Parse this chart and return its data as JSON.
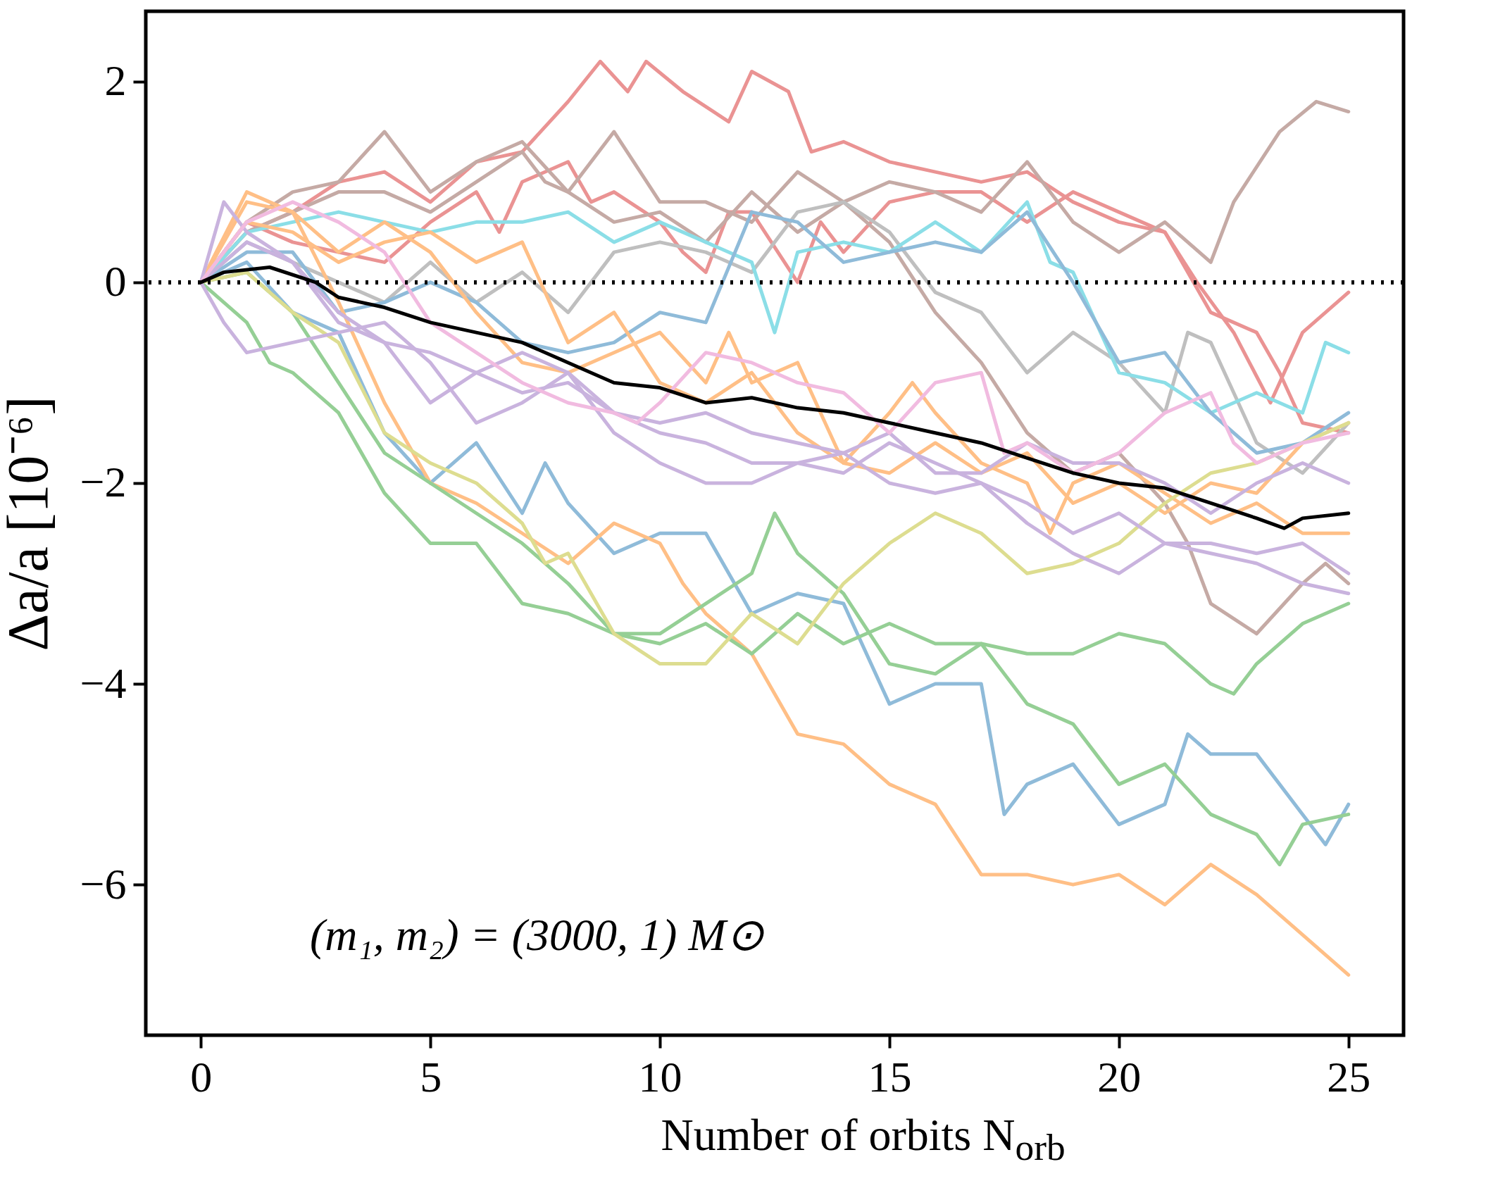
{
  "chart_data": {
    "type": "line",
    "xlabel": "Number of orbits N$_{orb}$",
    "ylabel": "Δa/a [10⁻⁶]",
    "annotations": [
      "(m₁, m₂) = (3000, 1) M⊙"
    ],
    "xlim": [
      -1.2,
      26.2
    ],
    "ylim": [
      -7.5,
      2.7
    ],
    "xticks": [
      0,
      5,
      10,
      15,
      20,
      25
    ],
    "yticks": [
      -6,
      -4,
      -2,
      0,
      2
    ],
    "line_style": "solid",
    "ref_lines": [
      {
        "axis": "y",
        "value": 0,
        "color": "#000000",
        "line_style": "dotted"
      }
    ],
    "series": [
      {
        "color": "#ea9393",
        "x": [
          0,
          1,
          2,
          3,
          4,
          5,
          6,
          7,
          8,
          8.7,
          9.3,
          9.7,
          10.5,
          11.5,
          12,
          12.8,
          13.3,
          14,
          15,
          16,
          17,
          18,
          19,
          20,
          21,
          21.7,
          22.5,
          23.3,
          24,
          25
        ],
        "values": [
          0,
          0.5,
          0.7,
          1.0,
          1.1,
          0.8,
          1.2,
          1.3,
          1.8,
          2.2,
          1.9,
          2.2,
          1.9,
          1.6,
          2.1,
          1.9,
          1.3,
          1.4,
          1.2,
          1.1,
          1.0,
          1.1,
          0.8,
          0.6,
          0.5,
          0,
          -0.5,
          -1.2,
          -0.5,
          -0.1
        ]
      },
      {
        "color": "#ea9393",
        "x": [
          0,
          1,
          2,
          3,
          4,
          5,
          6,
          6.5,
          7,
          8,
          8.5,
          9,
          10,
          10.5,
          11,
          11.5,
          12,
          13,
          13.5,
          14,
          15,
          16,
          17,
          18,
          19,
          20,
          21,
          22,
          23,
          23.5,
          24,
          25
        ],
        "values": [
          0,
          0.6,
          0.4,
          0.3,
          0.2,
          0.6,
          0.9,
          0.5,
          1.0,
          1.2,
          0.8,
          0.9,
          0.6,
          0.3,
          0.1,
          0.7,
          0.7,
          0,
          0.6,
          0.3,
          0.8,
          0.9,
          0.9,
          0.6,
          0.9,
          0.7,
          0.5,
          -0.3,
          -0.5,
          -0.9,
          -1.4,
          -1.5
        ]
      },
      {
        "color": "#c5aaa5",
        "x": [
          0,
          1,
          2,
          3,
          4,
          5,
          6,
          7,
          8,
          9,
          10,
          11,
          12,
          13,
          14,
          15,
          16,
          17,
          18,
          19,
          20,
          21,
          22,
          22.5,
          23.5,
          24.3,
          25
        ],
        "values": [
          0,
          0.6,
          0.9,
          1.0,
          1.5,
          0.9,
          1.2,
          1.4,
          0.9,
          1.5,
          0.8,
          0.8,
          0.6,
          1.1,
          0.8,
          1.0,
          0.9,
          0.7,
          1.2,
          0.6,
          0.3,
          0.6,
          0.2,
          0.8,
          1.5,
          1.8,
          1.7
        ]
      },
      {
        "color": "#c5aaa5",
        "x": [
          0,
          1,
          2,
          3,
          4,
          5,
          6,
          7,
          7.5,
          8,
          9,
          10,
          11,
          12,
          13,
          14,
          15,
          16,
          17,
          18,
          19,
          20,
          21,
          21.5,
          22,
          23,
          24,
          24.5,
          25
        ],
        "values": [
          0,
          0.5,
          0.7,
          0.9,
          0.9,
          0.7,
          1.0,
          1.3,
          1.0,
          0.9,
          0.6,
          0.7,
          0.4,
          0.9,
          0.5,
          0.8,
          0.4,
          -0.3,
          -0.8,
          -1.5,
          -1.9,
          -1.7,
          -2.2,
          -2.6,
          -3.2,
          -3.5,
          -3.0,
          -2.8,
          -3.0
        ]
      },
      {
        "color": "#bfbfbf",
        "x": [
          0,
          1,
          2,
          3,
          4,
          5,
          6,
          7,
          8,
          9,
          10,
          11,
          12,
          13,
          14,
          15,
          16,
          17,
          18,
          19,
          20,
          21,
          21.5,
          22,
          23,
          24,
          25
        ],
        "values": [
          0,
          0.4,
          0.2,
          0,
          -0.2,
          0.2,
          -0.2,
          0.1,
          -0.3,
          0.3,
          0.4,
          0.3,
          0.1,
          0.7,
          0.8,
          0.5,
          -0.1,
          -0.3,
          -0.9,
          -0.5,
          -0.8,
          -1.3,
          -0.5,
          -0.6,
          -1.6,
          -1.9,
          -1.4
        ]
      },
      {
        "color": "#8bdee7",
        "x": [
          0,
          1,
          2,
          3,
          4,
          5,
          6,
          7,
          8,
          9,
          10,
          11,
          12,
          12.5,
          13,
          14,
          15,
          16,
          17,
          18,
          18.5,
          19,
          20,
          21,
          22,
          23,
          24,
          24.5,
          25
        ],
        "values": [
          0,
          0.5,
          0.6,
          0.7,
          0.6,
          0.5,
          0.6,
          0.6,
          0.7,
          0.4,
          0.6,
          0.4,
          0.2,
          -0.5,
          0.3,
          0.4,
          0.3,
          0.6,
          0.3,
          0.8,
          0.2,
          0.1,
          -0.9,
          -1.0,
          -1.3,
          -1.1,
          -1.3,
          -0.6,
          -0.7
        ]
      },
      {
        "color": "#8fbbd9",
        "x": [
          0,
          1,
          2,
          3,
          4,
          5,
          6,
          7,
          8,
          9,
          10,
          11,
          12,
          13,
          14,
          15,
          16,
          17,
          18,
          19,
          20,
          21,
          22,
          23,
          24,
          25
        ],
        "values": [
          0,
          0.3,
          0.3,
          -0.3,
          -0.2,
          0,
          -0.2,
          -0.6,
          -0.7,
          -0.6,
          -0.3,
          -0.4,
          0.7,
          0.6,
          0.2,
          0.3,
          0.4,
          0.3,
          0.7,
          0,
          -0.8,
          -0.7,
          -1.3,
          -1.7,
          -1.6,
          -1.3
        ]
      },
      {
        "color": "#8fbbd9",
        "x": [
          0,
          1,
          2,
          3,
          4,
          5,
          6,
          7,
          7.5,
          8,
          9,
          10,
          11,
          12,
          13,
          14,
          15,
          16,
          17,
          17.5,
          18,
          19,
          20,
          21,
          21.5,
          22,
          23,
          24,
          24.5,
          25
        ],
        "values": [
          0,
          0.2,
          -0.3,
          -0.5,
          -1.5,
          -2.0,
          -1.6,
          -2.3,
          -1.8,
          -2.2,
          -2.7,
          -2.5,
          -2.5,
          -3.3,
          -3.1,
          -3.2,
          -4.2,
          -4.0,
          -4.0,
          -5.3,
          -5.0,
          -4.8,
          -5.4,
          -5.2,
          -4.5,
          -4.7,
          -4.7,
          -5.3,
          -5.6,
          -5.2
        ]
      },
      {
        "color": "#ffbf86",
        "x": [
          0,
          1,
          2,
          3,
          4,
          5,
          6,
          7,
          8,
          9,
          10,
          10.5,
          11,
          12,
          13,
          14,
          15,
          16,
          17,
          18,
          19,
          20,
          21,
          22,
          23,
          24,
          25
        ],
        "values": [
          0,
          0.8,
          0.7,
          -0.2,
          -1.2,
          -2.0,
          -2.2,
          -2.5,
          -2.8,
          -2.4,
          -2.6,
          -3.0,
          -3.3,
          -3.7,
          -4.5,
          -4.6,
          -5.0,
          -5.2,
          -5.9,
          -5.9,
          -6.0,
          -5.9,
          -6.2,
          -5.8,
          -6.1,
          -6.5,
          -6.9
        ]
      },
      {
        "color": "#ffbf86",
        "x": [
          0,
          1,
          2,
          3,
          4,
          5,
          6,
          7,
          8,
          9,
          10,
          11,
          11.5,
          12,
          13,
          14,
          15,
          15.5,
          16,
          17,
          18,
          18.5,
          19,
          20,
          21,
          22,
          23,
          24,
          25
        ],
        "values": [
          0,
          0.9,
          0.7,
          0.3,
          0.6,
          0.3,
          -0.3,
          -0.8,
          -0.9,
          -0.7,
          -0.5,
          -1.0,
          -0.5,
          -1.0,
          -0.8,
          -1.8,
          -1.3,
          -1.0,
          -1.3,
          -1.8,
          -2.0,
          -2.5,
          -2.0,
          -1.8,
          -2.1,
          -2.4,
          -2.2,
          -2.5,
          -2.5
        ]
      },
      {
        "color": "#ffbf86",
        "x": [
          0,
          1,
          2,
          3,
          4,
          5,
          6,
          7,
          8,
          9,
          10,
          11,
          12,
          13,
          14,
          15,
          16,
          17,
          18,
          19,
          20,
          21,
          22,
          23,
          24,
          25
        ],
        "values": [
          0,
          0.6,
          0.5,
          0.2,
          0.4,
          0.5,
          0.2,
          0.4,
          -0.6,
          -0.3,
          -1.0,
          -1.2,
          -0.9,
          -1.5,
          -1.8,
          -1.9,
          -1.6,
          -1.9,
          -1.7,
          -2.2,
          -2.0,
          -2.3,
          -2.0,
          -2.1,
          -1.6,
          -1.4
        ]
      },
      {
        "color": "#95cf95",
        "x": [
          0,
          1,
          1.5,
          2,
          3,
          4,
          5,
          6,
          7,
          8,
          9,
          10,
          11,
          12,
          13,
          14,
          15,
          16,
          17,
          18,
          19,
          20,
          21,
          22,
          22.5,
          23,
          24,
          25
        ],
        "values": [
          0,
          -0.4,
          -0.8,
          -0.9,
          -1.3,
          -2.1,
          -2.6,
          -2.6,
          -3.2,
          -3.3,
          -3.5,
          -3.6,
          -3.4,
          -3.7,
          -3.3,
          -3.6,
          -3.4,
          -3.6,
          -3.6,
          -3.7,
          -3.7,
          -3.5,
          -3.6,
          -4.0,
          -4.1,
          -3.8,
          -3.4,
          -3.2
        ]
      },
      {
        "color": "#95cf95",
        "x": [
          0,
          1,
          2,
          3,
          4,
          5,
          6,
          7,
          8,
          9,
          10,
          11,
          12,
          12.5,
          13,
          14,
          15,
          16,
          17,
          18,
          19,
          20,
          21,
          22,
          23,
          23.5,
          24,
          25
        ],
        "values": [
          0,
          0.1,
          -0.3,
          -1.0,
          -1.7,
          -2.0,
          -2.3,
          -2.6,
          -3.0,
          -3.5,
          -3.5,
          -3.2,
          -2.9,
          -2.3,
          -2.7,
          -3.1,
          -3.8,
          -3.9,
          -3.6,
          -4.2,
          -4.4,
          -5.0,
          -4.8,
          -5.3,
          -5.5,
          -5.8,
          -5.4,
          -5.3
        ]
      },
      {
        "color": "#dddd90",
        "x": [
          0,
          1,
          2,
          3,
          4,
          5,
          6,
          7,
          7.5,
          8,
          9,
          10,
          11,
          12,
          13,
          14,
          15,
          16,
          17,
          18,
          19,
          20,
          21,
          22,
          23,
          24,
          25
        ],
        "values": [
          0,
          0.1,
          -0.3,
          -0.6,
          -1.5,
          -1.8,
          -2.0,
          -2.4,
          -2.8,
          -2.7,
          -3.5,
          -3.8,
          -3.8,
          -3.3,
          -3.6,
          -3.0,
          -2.6,
          -2.3,
          -2.5,
          -2.9,
          -2.8,
          -2.6,
          -2.2,
          -1.9,
          -1.8,
          -1.6,
          -1.4
        ]
      },
      {
        "color": "#c9b3de",
        "x": [
          0,
          0.5,
          1,
          2,
          3,
          4,
          5,
          6,
          7,
          8,
          9,
          10,
          11,
          12,
          13,
          14,
          15,
          16,
          17,
          18,
          19,
          20,
          21,
          22,
          23,
          24,
          25
        ],
        "values": [
          0,
          0.8,
          0.5,
          0.2,
          -0.4,
          -0.6,
          -1.2,
          -0.9,
          -0.7,
          -0.9,
          -1.3,
          -1.5,
          -1.6,
          -1.8,
          -1.8,
          -1.7,
          -1.5,
          -1.9,
          -1.9,
          -1.6,
          -1.8,
          -1.8,
          -2.0,
          -2.3,
          -2.0,
          -1.8,
          -2.0
        ]
      },
      {
        "color": "#c9b3de",
        "x": [
          0,
          0.5,
          1,
          2,
          3,
          4,
          5,
          6,
          7,
          8,
          9,
          10,
          11,
          12,
          13,
          14,
          15,
          16,
          17,
          18,
          19,
          20,
          21,
          22,
          23,
          24,
          25
        ],
        "values": [
          0,
          -0.4,
          -0.7,
          -0.6,
          -0.5,
          -0.4,
          -0.8,
          -1.4,
          -1.2,
          -0.9,
          -1.5,
          -1.8,
          -2.0,
          -2.0,
          -1.8,
          -1.9,
          -1.6,
          -1.8,
          -2.0,
          -2.4,
          -2.7,
          -2.9,
          -2.6,
          -2.6,
          -2.7,
          -2.6,
          -2.9
        ]
      },
      {
        "color": "#c9b3de",
        "x": [
          0,
          1,
          2,
          3,
          4,
          5,
          6,
          7,
          8,
          9,
          10,
          11,
          12,
          13,
          14,
          15,
          16,
          17,
          18,
          19,
          20,
          21,
          22,
          23,
          24,
          25
        ],
        "values": [
          0,
          0.4,
          0.2,
          -0.3,
          -0.6,
          -0.7,
          -0.9,
          -1.1,
          -1.0,
          -1.3,
          -1.4,
          -1.3,
          -1.5,
          -1.6,
          -1.7,
          -2.0,
          -2.1,
          -2.0,
          -2.2,
          -2.5,
          -2.3,
          -2.6,
          -2.7,
          -2.8,
          -3.0,
          -3.1
        ]
      },
      {
        "color": "#f1bbe0",
        "x": [
          0,
          1,
          2,
          3,
          4,
          5,
          6,
          7,
          8,
          9,
          9.5,
          10,
          11,
          12,
          13,
          14,
          15,
          16,
          17,
          17.5,
          18,
          19,
          20,
          21,
          22,
          22.5,
          23,
          24,
          25
        ],
        "values": [
          0,
          0.6,
          0.8,
          0.6,
          0.3,
          -0.4,
          -0.7,
          -1.0,
          -1.2,
          -1.3,
          -1.4,
          -1.2,
          -0.7,
          -0.8,
          -1.0,
          -1.1,
          -1.5,
          -1.0,
          -0.9,
          -1.7,
          -1.6,
          -1.9,
          -1.7,
          -1.3,
          -1.1,
          -1.6,
          -1.8,
          -1.6,
          -1.5
        ]
      },
      {
        "color": "#000000",
        "x": [
          0,
          0.5,
          1.5,
          2.5,
          3,
          4,
          5,
          6,
          7,
          8,
          9,
          10,
          11,
          12,
          13,
          14,
          15,
          16,
          17,
          18,
          19,
          20,
          21,
          22,
          23,
          23.6,
          24,
          25
        ],
        "values": [
          0,
          0.1,
          0.15,
          0,
          -0.15,
          -0.25,
          -0.4,
          -0.5,
          -0.6,
          -0.8,
          -1.0,
          -1.05,
          -1.2,
          -1.15,
          -1.25,
          -1.3,
          -1.4,
          -1.5,
          -1.6,
          -1.75,
          -1.9,
          -2.0,
          -2.05,
          -2.2,
          -2.35,
          -2.45,
          -2.35,
          -2.3
        ]
      }
    ]
  }
}
